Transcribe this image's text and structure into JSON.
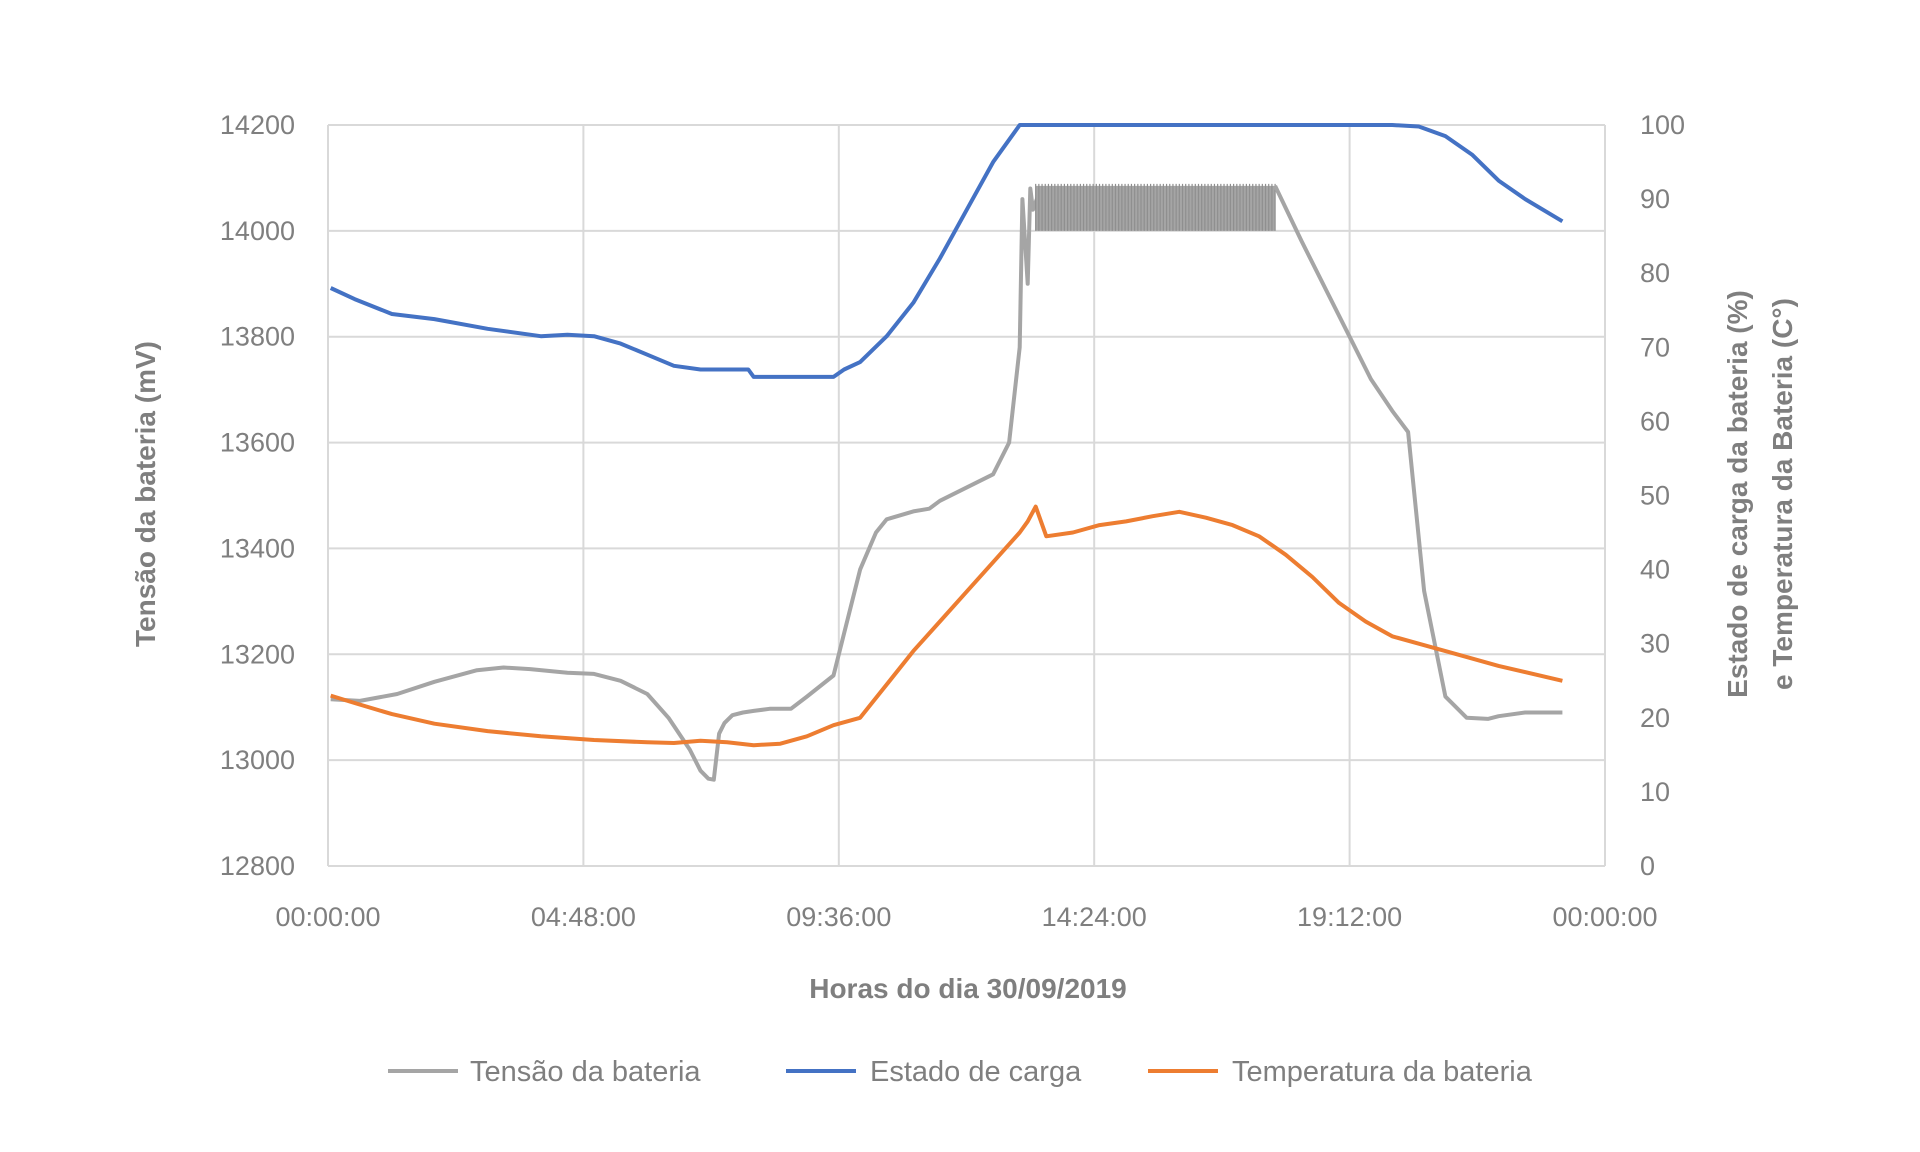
{
  "chart_data": {
    "type": "line",
    "xlabel": "Horas do dia 30/09/2019",
    "ylabel_left": "Tensão da bateria (mV)",
    "ylabel_right": [
      "Estado de carga da bateria (%)",
      "e Temperatura da Bateria (C°)"
    ],
    "x_ticks": [
      "00:00:00",
      "04:48:00",
      "09:36:00",
      "14:24:00",
      "19:12:00",
      "00:00:00"
    ],
    "xlim_hours": [
      0,
      24
    ],
    "y_left_ticks": [
      "12800",
      "13000",
      "13200",
      "13400",
      "13600",
      "13800",
      "14000",
      "14200"
    ],
    "ylim_left": [
      12800,
      14200
    ],
    "y_right_ticks": [
      "0",
      "10",
      "20",
      "30",
      "40",
      "50",
      "60",
      "70",
      "80",
      "90",
      "100"
    ],
    "ylim_right": [
      0,
      100
    ],
    "grid": true,
    "legend_position": "bottom",
    "series": [
      {
        "name": "Tensão da bateria",
        "axis": "left",
        "color": "#a5a5a5",
        "x": [
          0.05,
          0.6,
          1.3,
          2.0,
          2.8,
          3.3,
          3.8,
          4.5,
          5.0,
          5.5,
          6.0,
          6.4,
          6.8,
          7.0,
          7.15,
          7.25,
          7.35,
          7.45,
          7.6,
          7.8,
          8.0,
          8.3,
          8.7,
          9.0,
          9.5,
          10.0,
          10.3,
          10.5,
          11.0,
          11.3,
          11.5,
          12.0,
          12.5,
          12.8,
          13.0,
          13.05,
          13.15,
          13.2,
          13.25,
          13.4
        ],
        "values": [
          13115,
          13112,
          13125,
          13148,
          13170,
          13175,
          13172,
          13165,
          13163,
          13150,
          13125,
          13080,
          13020,
          12980,
          12965,
          12963,
          13050,
          13070,
          13085,
          13090,
          13093,
          13097,
          13097,
          13120,
          13160,
          13360,
          13430,
          13455,
          13470,
          13475,
          13490,
          13515,
          13540,
          13600,
          13780,
          14060,
          13900,
          14080,
          14040,
          14082
        ],
        "band": {
          "x_range_hours": [
            13.3,
            17.8
          ],
          "min": 14000,
          "max": 14085
        },
        "x_after": [
          17.8,
          18.3,
          18.8,
          19.2,
          19.6,
          20.0,
          20.3,
          20.6,
          21.0,
          21.4,
          21.8,
          22.0,
          22.5,
          23.2
        ],
        "values_after": [
          14085,
          13980,
          13880,
          13800,
          13720,
          13660,
          13620,
          13320,
          13120,
          13080,
          13078,
          13083,
          13090,
          13090
        ]
      },
      {
        "name": "Estado de carga",
        "axis": "right",
        "color": "#4472c4",
        "x": [
          0.05,
          0.5,
          1.2,
          2.0,
          3.0,
          4.0,
          4.5,
          5.0,
          5.5,
          6.0,
          6.5,
          7.0,
          7.5,
          7.9,
          8.0,
          8.5,
          9.0,
          9.5,
          9.7,
          10.0,
          10.5,
          11.0,
          11.5,
          12.0,
          12.5,
          13.0,
          14.0,
          15.0,
          16.0,
          17.0,
          18.0,
          19.0,
          20.0,
          20.5,
          21.0,
          21.5,
          22.0,
          22.5,
          23.2
        ],
        "values": [
          78,
          76.5,
          74.5,
          73.8,
          72.5,
          71.5,
          71.7,
          71.5,
          70.5,
          69,
          67.5,
          67,
          67,
          67,
          66,
          66,
          66,
          66,
          67,
          68,
          71.5,
          76,
          82,
          88.5,
          95,
          100,
          100,
          100,
          100,
          100,
          100,
          100,
          100,
          99.8,
          98.5,
          96,
          92.5,
          90,
          87
        ]
      },
      {
        "name": "Temperatura da bateria",
        "axis": "right",
        "color": "#ed7d31",
        "x": [
          0.05,
          0.5,
          1.2,
          2.0,
          3.0,
          4.0,
          5.0,
          6.0,
          6.5,
          7.0,
          7.5,
          8.0,
          8.5,
          9.0,
          9.5,
          10.0,
          10.5,
          11.0,
          11.5,
          12.0,
          12.5,
          13.0,
          13.15,
          13.3,
          13.5,
          14.0,
          14.5,
          15.0,
          15.5,
          16.0,
          16.5,
          17.0,
          17.5,
          18.0,
          18.5,
          19.0,
          19.5,
          20.0,
          20.5,
          21.0,
          22.0,
          23.2
        ],
        "values": [
          23,
          22,
          20.5,
          19.2,
          18.2,
          17.5,
          17,
          16.7,
          16.6,
          16.9,
          16.7,
          16.3,
          16.5,
          17.5,
          19,
          20,
          24.5,
          29,
          33,
          37,
          41,
          45,
          46.5,
          48.5,
          44.5,
          45,
          46,
          46.5,
          47.2,
          47.8,
          47,
          46,
          44.5,
          42,
          39,
          35.5,
          33,
          31,
          30,
          29,
          27,
          25
        ]
      }
    ]
  }
}
